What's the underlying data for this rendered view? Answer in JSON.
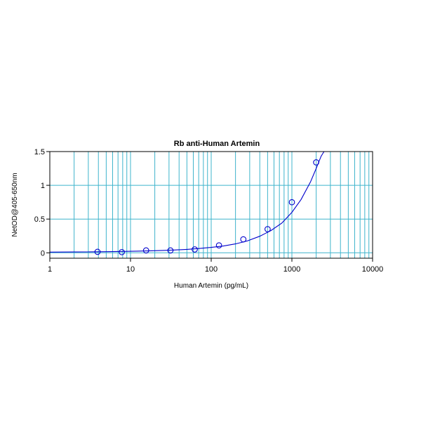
{
  "chart_data": {
    "type": "scatter",
    "title": "Rb anti-Human Artemin",
    "xlabel": "Human Artemin (pg/mL)",
    "ylabel": "NetOD@405-650nm",
    "x_scale": "log",
    "xlim": [
      1,
      10000
    ],
    "ylim": [
      -0.08,
      1.5
    ],
    "x_ticks": [
      1,
      10,
      100,
      1000,
      10000
    ],
    "x_tick_labels": [
      "1",
      "10",
      "100",
      "1000",
      "10000"
    ],
    "y_ticks": [
      0,
      0.5,
      1,
      1.5
    ],
    "y_tick_labels": [
      "0",
      "0.5",
      "1",
      "1.5"
    ],
    "grid": true,
    "series": [
      {
        "x": [
          3.9,
          7.8,
          15.6,
          31.25,
          62.5,
          125,
          250,
          500,
          1000,
          2000
        ],
        "y": [
          0.015,
          0.01,
          0.035,
          0.035,
          0.05,
          0.11,
          0.2,
          0.35,
          0.75,
          1.34
        ]
      }
    ],
    "fit_curve": {
      "x": [
        1,
        2,
        3,
        5,
        8,
        12,
        18,
        25,
        35,
        50,
        70,
        100,
        140,
        200,
        280,
        400,
        550,
        750,
        1000,
        1300,
        1700,
        2000,
        2300,
        2500
      ],
      "y": [
        0.01,
        0.012,
        0.014,
        0.017,
        0.021,
        0.025,
        0.03,
        0.035,
        0.042,
        0.051,
        0.063,
        0.08,
        0.1,
        0.132,
        0.176,
        0.245,
        0.33,
        0.44,
        0.6,
        0.79,
        1.05,
        1.25,
        1.43,
        1.55
      ]
    },
    "colors": {
      "points": "#0000cc",
      "curve": "#0000cc",
      "grid": "#3fb4cc",
      "axes": "#000000"
    }
  }
}
